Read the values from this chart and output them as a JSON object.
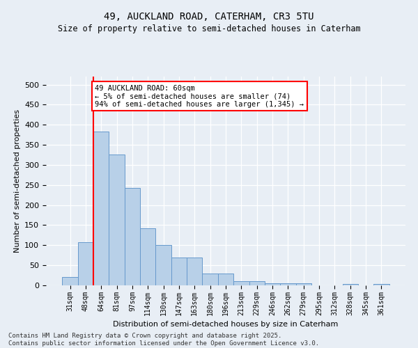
{
  "title1": "49, AUCKLAND ROAD, CATERHAM, CR3 5TU",
  "title2": "Size of property relative to semi-detached houses in Caterham",
  "xlabel": "Distribution of semi-detached houses by size in Caterham",
  "ylabel": "Number of semi-detached properties",
  "categories": [
    "31sqm",
    "48sqm",
    "64sqm",
    "81sqm",
    "97sqm",
    "114sqm",
    "130sqm",
    "147sqm",
    "163sqm",
    "180sqm",
    "196sqm",
    "213sqm",
    "229sqm",
    "246sqm",
    "262sqm",
    "279sqm",
    "295sqm",
    "312sqm",
    "328sqm",
    "345sqm",
    "361sqm"
  ],
  "values": [
    20,
    107,
    383,
    325,
    242,
    142,
    101,
    69,
    69,
    30,
    30,
    10,
    10,
    6,
    6,
    6,
    0,
    0,
    4,
    0,
    4
  ],
  "bar_color": "#b8d0e8",
  "bar_edge_color": "#6699cc",
  "vline_color": "red",
  "vline_x": 1.5,
  "annotation_text": "49 AUCKLAND ROAD: 60sqm\n← 5% of semi-detached houses are smaller (74)\n94% of semi-detached houses are larger (1,345) →",
  "ylim": [
    0,
    520
  ],
  "yticks": [
    0,
    50,
    100,
    150,
    200,
    250,
    300,
    350,
    400,
    450,
    500
  ],
  "footer1": "Contains HM Land Registry data © Crown copyright and database right 2025.",
  "footer2": "Contains public sector information licensed under the Open Government Licence v3.0.",
  "bg_color": "#e8eef5",
  "plot_bg_color": "#e8eef5"
}
